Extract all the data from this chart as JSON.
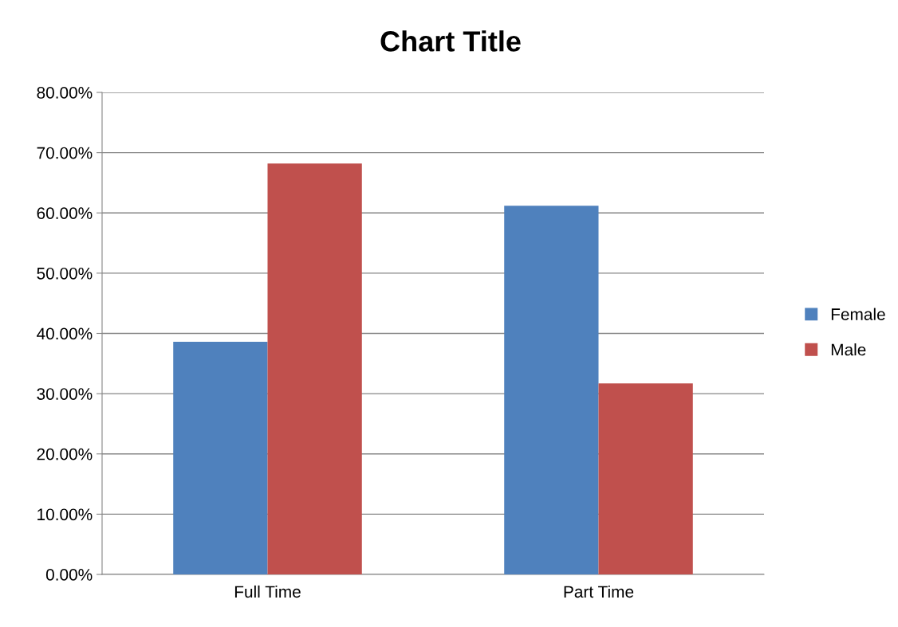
{
  "chart_data": {
    "type": "bar",
    "title": "Chart Title",
    "categories": [
      "Full Time",
      "Part Time"
    ],
    "series": [
      {
        "name": "Female",
        "color": "#4f81bd",
        "values": [
          38.6,
          61.2
        ]
      },
      {
        "name": "Male",
        "color": "#c0504d",
        "values": [
          68.2,
          31.7
        ]
      }
    ],
    "ylim": [
      0,
      80
    ],
    "yticks": [
      {
        "value": 0,
        "label": "0.00%"
      },
      {
        "value": 10,
        "label": "10.00%"
      },
      {
        "value": 20,
        "label": "20.00%"
      },
      {
        "value": 30,
        "label": "30.00%"
      },
      {
        "value": 40,
        "label": "40.00%"
      },
      {
        "value": 50,
        "label": "50.00%"
      },
      {
        "value": 60,
        "label": "60.00%"
      },
      {
        "value": 70,
        "label": "70.00%"
      },
      {
        "value": 80,
        "label": "80.00%"
      }
    ],
    "grid": "y",
    "legend": "right"
  }
}
